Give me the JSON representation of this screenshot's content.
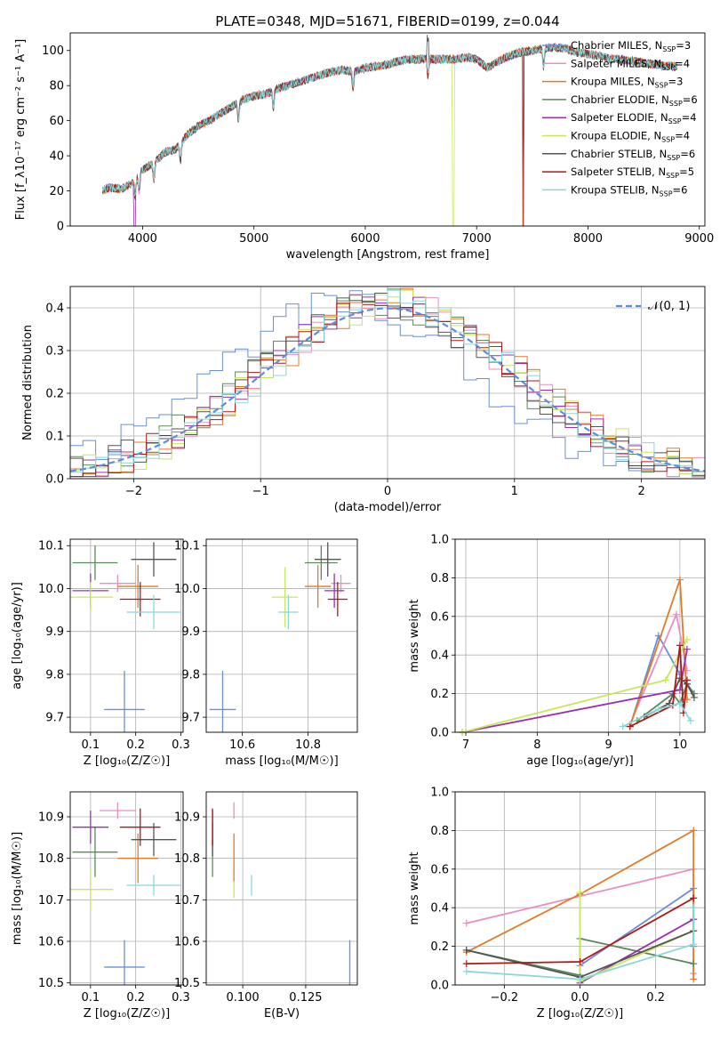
{
  "colors": {
    "chabrier_miles": "#6a8fd8",
    "salpeter_miles": "#e88fc0",
    "kroupa_miles": "#e07b28",
    "chabrier_elodie": "#5a8a5a",
    "salpeter_elodie": "#9a30b0",
    "kroupa_elodie": "#c8e85a",
    "chabrier_stelib": "#555555",
    "salpeter_stelib": "#b01818",
    "kroupa_stelib": "#88d8dc",
    "normal": "#5b8ee0"
  },
  "chart_data": [
    {
      "id": "spectrum",
      "type": "line",
      "title": "PLATE=0348, MJD=51671, FIBERID=0199, z=0.044",
      "xlabel": "wavelength [Angstrom, rest frame]",
      "ylabel": "Flux [f_λ10⁻¹⁷ erg cm⁻² s⁻¹ A⁻¹]",
      "xlim": [
        3350,
        9050
      ],
      "ylim": [
        0,
        110
      ],
      "xticks": [
        "4000",
        "5000",
        "6000",
        "7000",
        "8000",
        "9000"
      ],
      "yticks": [
        "0",
        "20",
        "40",
        "60",
        "80",
        "100"
      ],
      "grid": false,
      "legend_position": "top-right",
      "legend": [
        {
          "text": "Chabrier MILES, N",
          "sub": "SSP",
          "tail": "=3"
        },
        {
          "text": "Salpeter MILES, N",
          "sub": "SSP",
          "tail": "=4"
        },
        {
          "text": "Kroupa MILES, N",
          "sub": "SSP",
          "tail": "=3"
        },
        {
          "text": "Chabrier ELODIE, N",
          "sub": "SSP",
          "tail": "=6"
        },
        {
          "text": "Salpeter ELODIE, N",
          "sub": "SSP",
          "tail": "=4"
        },
        {
          "text": "Kroupa ELODIE, N",
          "sub": "SSP",
          "tail": "=4"
        },
        {
          "text": "Chabrier STELIB, N",
          "sub": "SSP",
          "tail": "=6"
        },
        {
          "text": "Salpeter STELIB, N",
          "sub": "SSP",
          "tail": "=5"
        },
        {
          "text": "Kroupa STELIB, N",
          "sub": "SSP",
          "tail": "=6"
        }
      ],
      "continuum": [
        [
          3640,
          20
        ],
        [
          3700,
          22
        ],
        [
          3800,
          21
        ],
        [
          3900,
          24
        ],
        [
          4000,
          32
        ],
        [
          4100,
          36
        ],
        [
          4200,
          42
        ],
        [
          4300,
          44
        ],
        [
          4400,
          52
        ],
        [
          4500,
          57
        ],
        [
          4600,
          60
        ],
        [
          4700,
          64
        ],
        [
          4800,
          68
        ],
        [
          4900,
          72
        ],
        [
          5000,
          74
        ],
        [
          5100,
          75
        ],
        [
          5200,
          78
        ],
        [
          5300,
          80
        ],
        [
          5400,
          82
        ],
        [
          5500,
          84
        ],
        [
          5600,
          86
        ],
        [
          5700,
          88
        ],
        [
          5800,
          89
        ],
        [
          5900,
          88
        ],
        [
          6000,
          90
        ],
        [
          6100,
          91
        ],
        [
          6200,
          92
        ],
        [
          6300,
          94
        ],
        [
          6400,
          95
        ],
        [
          6500,
          95
        ],
        [
          6600,
          95
        ],
        [
          6700,
          95
        ],
        [
          6800,
          95
        ],
        [
          6900,
          96
        ],
        [
          7000,
          95
        ],
        [
          7100,
          90
        ],
        [
          7200,
          94
        ],
        [
          7300,
          97
        ],
        [
          7400,
          99
        ],
        [
          7500,
          100
        ],
        [
          7600,
          101
        ],
        [
          7700,
          102
        ],
        [
          7800,
          101
        ],
        [
          7900,
          99
        ],
        [
          8000,
          98
        ],
        [
          8100,
          97
        ],
        [
          8200,
          95
        ],
        [
          8300,
          95
        ],
        [
          8400,
          94
        ],
        [
          8500,
          93
        ],
        [
          8600,
          92
        ],
        [
          8700,
          91
        ],
        [
          8800,
          91
        ]
      ]
    },
    {
      "id": "residuals",
      "type": "histogram",
      "xlabel": "(data-model)/error",
      "ylabel": "Normed distribution",
      "xlim": [
        -2.5,
        2.5
      ],
      "ylim": [
        0,
        0.45
      ],
      "xticks": [
        "−2",
        "−1",
        "0",
        "1",
        "2"
      ],
      "yticks": [
        "0.0",
        "0.1",
        "0.2",
        "0.3",
        "0.4"
      ],
      "grid": true,
      "legend_position": "top-right",
      "legend": "𝒩(0, 1)",
      "bin_width": 0.1
    },
    {
      "id": "age-vs-Z",
      "type": "errorbar",
      "xlabel": "Z [log₁₀(Z/Z☉)]",
      "ylabel": "age  [log₁₀(age/yr)]",
      "xlim": [
        0.055,
        0.305
      ],
      "ylim": [
        9.665,
        10.115
      ],
      "xticks": [
        "0.1",
        "0.2",
        "0.3"
      ],
      "yticks": [
        "9.7",
        "9.8",
        "9.9",
        "10.0",
        "10.1"
      ],
      "grid": true,
      "points": [
        {
          "key": "chabrier_miles",
          "x": 0.175,
          "y": 9.718,
          "xerr": 0.045,
          "yerr": 0.09
        },
        {
          "key": "salpeter_miles",
          "x": 0.16,
          "y": 10.012,
          "xerr": 0.04,
          "yerr": 0.02
        },
        {
          "key": "kroupa_miles",
          "x": 0.205,
          "y": 10.005,
          "xerr": 0.045,
          "yerr": 0.05
        },
        {
          "key": "chabrier_elodie",
          "x": 0.11,
          "y": 10.06,
          "xerr": 0.05,
          "yerr": 0.04
        },
        {
          "key": "salpeter_elodie",
          "x": 0.1,
          "y": 9.995,
          "xerr": 0.04,
          "yerr": 0.04
        },
        {
          "key": "kroupa_elodie",
          "x": 0.1,
          "y": 9.98,
          "xerr": 0.05,
          "yerr": 0.035
        },
        {
          "key": "chabrier_stelib",
          "x": 0.24,
          "y": 10.068,
          "xerr": 0.05,
          "yerr": 0.04
        },
        {
          "key": "salpeter_stelib",
          "x": 0.21,
          "y": 9.975,
          "xerr": 0.045,
          "yerr": 0.04
        },
        {
          "key": "kroupa_stelib",
          "x": 0.24,
          "y": 9.945,
          "xerr": 0.06,
          "yerr": 0.04
        }
      ]
    },
    {
      "id": "age-vs-mass",
      "type": "errorbar",
      "xlabel": "mass [log₁₀(M/M☉)]",
      "ylabel": "",
      "xlim": [
        10.49,
        10.95
      ],
      "ylim": [
        9.665,
        10.115
      ],
      "xticks": [
        "10.6",
        "10.8"
      ],
      "yticks": [
        "9.7",
        "9.8",
        "9.9",
        "10.0",
        "10.1"
      ],
      "grid": true,
      "points": [
        {
          "key": "chabrier_miles",
          "x": 10.54,
          "y": 9.718,
          "xerr": 0.04,
          "yerr": 0.09
        },
        {
          "key": "salpeter_miles",
          "x": 10.9,
          "y": 10.012,
          "xerr": 0.03,
          "yerr": 0.02
        },
        {
          "key": "kroupa_miles",
          "x": 10.83,
          "y": 10.005,
          "xerr": 0.04,
          "yerr": 0.05
        },
        {
          "key": "chabrier_elodie",
          "x": 10.84,
          "y": 10.06,
          "xerr": 0.05,
          "yerr": 0.04
        },
        {
          "key": "salpeter_elodie",
          "x": 10.88,
          "y": 9.995,
          "xerr": 0.03,
          "yerr": 0.04
        },
        {
          "key": "kroupa_elodie",
          "x": 10.73,
          "y": 9.98,
          "xerr": 0.04,
          "yerr": 0.07
        },
        {
          "key": "chabrier_stelib",
          "x": 10.86,
          "y": 10.068,
          "xerr": 0.04,
          "yerr": 0.04
        },
        {
          "key": "salpeter_stelib",
          "x": 10.89,
          "y": 9.975,
          "xerr": 0.03,
          "yerr": 0.04
        },
        {
          "key": "kroupa_stelib",
          "x": 10.74,
          "y": 9.945,
          "xerr": 0.03,
          "yerr": 0.04
        }
      ]
    },
    {
      "id": "weight-vs-age",
      "type": "line",
      "xlabel": "age  [log₁₀(age/yr)]",
      "ylabel": "mass weight",
      "xlim": [
        6.85,
        10.35
      ],
      "ylim": [
        0,
        1
      ],
      "xticks": [
        "7",
        "8",
        "9",
        "10"
      ],
      "yticks": [
        "0.0",
        "0.2",
        "0.4",
        "0.6",
        "0.8",
        "1.0"
      ],
      "grid": true,
      "series": [
        {
          "key": "chabrier_miles",
          "points": [
            [
              9.3,
              0.03
            ],
            [
              9.7,
              0.5
            ],
            [
              10.0,
              0.3
            ]
          ]
        },
        {
          "key": "salpeter_miles",
          "points": [
            [
              9.3,
              0.04
            ],
            [
              9.95,
              0.61
            ],
            [
              10.1,
              0.32
            ]
          ]
        },
        {
          "key": "kroupa_miles",
          "points": [
            [
              9.3,
              0.03
            ],
            [
              10.0,
              0.79
            ],
            [
              10.1,
              0.17
            ]
          ]
        },
        {
          "key": "chabrier_elodie",
          "points": [
            [
              9.4,
              0.06
            ],
            [
              9.9,
              0.2
            ],
            [
              10.0,
              0.15
            ],
            [
              10.1,
              0.25
            ],
            [
              10.2,
              0.2
            ]
          ]
        },
        {
          "key": "salpeter_elodie",
          "points": [
            [
              6.95,
              0.0
            ],
            [
              10.0,
              0.22
            ],
            [
              10.1,
              0.43
            ]
          ]
        },
        {
          "key": "kroupa_elodie",
          "points": [
            [
              6.95,
              0.0
            ],
            [
              9.8,
              0.27
            ],
            [
              10.1,
              0.48
            ]
          ]
        },
        {
          "key": "chabrier_stelib",
          "points": [
            [
              9.5,
              0.08
            ],
            [
              9.85,
              0.15
            ],
            [
              10.0,
              0.28
            ],
            [
              10.1,
              0.25
            ],
            [
              10.2,
              0.18
            ]
          ]
        },
        {
          "key": "salpeter_stelib",
          "points": [
            [
              9.3,
              0.03
            ],
            [
              9.9,
              0.14
            ],
            [
              10.0,
              0.45
            ],
            [
              10.05,
              0.1
            ],
            [
              10.1,
              0.27
            ]
          ]
        },
        {
          "key": "kroupa_stelib",
          "points": [
            [
              9.2,
              0.03
            ],
            [
              9.7,
              0.12
            ],
            [
              10.0,
              0.15
            ],
            [
              10.15,
              0.06
            ]
          ]
        }
      ]
    },
    {
      "id": "mass-vs-Z",
      "type": "errorbar",
      "xlabel": "Z [log₁₀(Z/Z☉)]",
      "ylabel": "mass [log₁₀(M/M☉)]",
      "xlim": [
        0.055,
        0.305
      ],
      "ylim": [
        10.495,
        10.96
      ],
      "xticks": [
        "0.1",
        "0.2",
        "0.3"
      ],
      "yticks": [
        "10.5",
        "10.6",
        "10.7",
        "10.8",
        "10.9"
      ],
      "grid": true,
      "points": [
        {
          "key": "chabrier_miles",
          "x": 0.175,
          "y": 10.538,
          "xerr": 0.045,
          "yerr": 0.065
        },
        {
          "key": "salpeter_miles",
          "x": 0.16,
          "y": 10.915,
          "xerr": 0.04,
          "yerr": 0.02
        },
        {
          "key": "kroupa_miles",
          "x": 0.205,
          "y": 10.8,
          "xerr": 0.045,
          "yerr": 0.06
        },
        {
          "key": "chabrier_elodie",
          "x": 0.11,
          "y": 10.815,
          "xerr": 0.05,
          "yerr": 0.06
        },
        {
          "key": "salpeter_elodie",
          "x": 0.1,
          "y": 10.875,
          "xerr": 0.04,
          "yerr": 0.04
        },
        {
          "key": "kroupa_elodie",
          "x": 0.1,
          "y": 10.725,
          "xerr": 0.05,
          "yerr": 0.05
        },
        {
          "key": "chabrier_stelib",
          "x": 0.24,
          "y": 10.845,
          "xerr": 0.05,
          "yerr": 0.04
        },
        {
          "key": "salpeter_stelib",
          "x": 0.21,
          "y": 10.875,
          "xerr": 0.045,
          "yerr": 0.045
        },
        {
          "key": "kroupa_stelib",
          "x": 0.24,
          "y": 10.735,
          "xerr": 0.06,
          "yerr": 0.025
        }
      ]
    },
    {
      "id": "mass-vs-EBV",
      "type": "errorbar",
      "xlabel": "E(B-V)",
      "ylabel": "",
      "xlim": [
        0.0855,
        0.1455
      ],
      "ylim": [
        10.495,
        10.96
      ],
      "xticks": [
        "0.100",
        "0.125"
      ],
      "yticks": [
        "10.5",
        "10.6",
        "10.7",
        "10.8",
        "10.9"
      ],
      "grid": true,
      "points": [
        {
          "key": "chabrier_miles",
          "x": 0.1425,
          "y": 10.538,
          "xerr": 0,
          "yerr": 0.065
        },
        {
          "key": "salpeter_miles",
          "x": 0.0965,
          "y": 10.915,
          "xerr": 0,
          "yerr": 0.02
        },
        {
          "key": "kroupa_miles",
          "x": 0.0965,
          "y": 10.8,
          "xerr": 0,
          "yerr": 0.06
        },
        {
          "key": "chabrier_elodie",
          "x": 0.088,
          "y": 10.8,
          "xerr": 0,
          "yerr": 0.045
        },
        {
          "key": "salpeter_elodie",
          "x": 0.088,
          "y": 10.875,
          "xerr": 0,
          "yerr": 0.04
        },
        {
          "key": "kroupa_elodie",
          "x": 0.0965,
          "y": 10.725,
          "xerr": 0,
          "yerr": 0.02
        },
        {
          "key": "chabrier_stelib",
          "x": 0.088,
          "y": 10.845,
          "xerr": 0,
          "yerr": 0.04
        },
        {
          "key": "salpeter_stelib",
          "x": 0.088,
          "y": 10.875,
          "xerr": 0,
          "yerr": 0.045
        },
        {
          "key": "kroupa_stelib",
          "x": 0.1035,
          "y": 10.735,
          "xerr": 0,
          "yerr": 0.025
        }
      ]
    },
    {
      "id": "weight-vs-Z",
      "type": "line",
      "xlabel": "Z [log₁₀(Z/Z☉)]",
      "ylabel": "mass weight",
      "xlim": [
        -0.33,
        0.33
      ],
      "ylim": [
        0,
        1
      ],
      "xticks": [
        "−0.2",
        "0.0",
        "0.2"
      ],
      "yticks": [
        "0.0",
        "0.2",
        "0.4",
        "0.6",
        "0.8",
        "1.0"
      ],
      "grid": true,
      "series": [
        {
          "key": "chabrier_miles",
          "points": [
            [
              0.0,
              0.1
            ],
            [
              0.3,
              0.5
            ],
            [
              0.3,
              0.2
            ]
          ]
        },
        {
          "key": "salpeter_miles",
          "points": [
            [
              -0.3,
              0.32
            ],
            [
              0.3,
              0.6
            ],
            [
              0.3,
              0.06
            ]
          ]
        },
        {
          "key": "kroupa_miles",
          "points": [
            [
              -0.3,
              0.17
            ],
            [
              0.0,
              0.47
            ],
            [
              0.3,
              0.8
            ],
            [
              0.3,
              0.03
            ]
          ]
        },
        {
          "key": "chabrier_elodie",
          "points": [
            [
              -0.3,
              0.18
            ],
            [
              0.0,
              0.05
            ],
            [
              0.0,
              0.24
            ],
            [
              0.3,
              0.11
            ]
          ]
        },
        {
          "key": "salpeter_elodie",
          "points": [
            [
              0.0,
              0.01
            ],
            [
              0.3,
              0.34
            ]
          ]
        },
        {
          "key": "kroupa_elodie",
          "points": [
            [
              0.0,
              0.48
            ],
            [
              0.0,
              0.02
            ],
            [
              0.3,
              0.28
            ]
          ]
        },
        {
          "key": "chabrier_stelib",
          "points": [
            [
              -0.3,
              0.18
            ],
            [
              0.0,
              0.04
            ],
            [
              0.3,
              0.28
            ]
          ]
        },
        {
          "key": "salpeter_stelib",
          "points": [
            [
              -0.3,
              0.11
            ],
            [
              0.0,
              0.12
            ],
            [
              0.3,
              0.45
            ]
          ]
        },
        {
          "key": "kroupa_stelib",
          "points": [
            [
              -0.3,
              0.07
            ],
            [
              0.0,
              0.03
            ],
            [
              0.3,
              0.21
            ],
            [
              0.3,
              0.4
            ]
          ]
        }
      ]
    }
  ]
}
